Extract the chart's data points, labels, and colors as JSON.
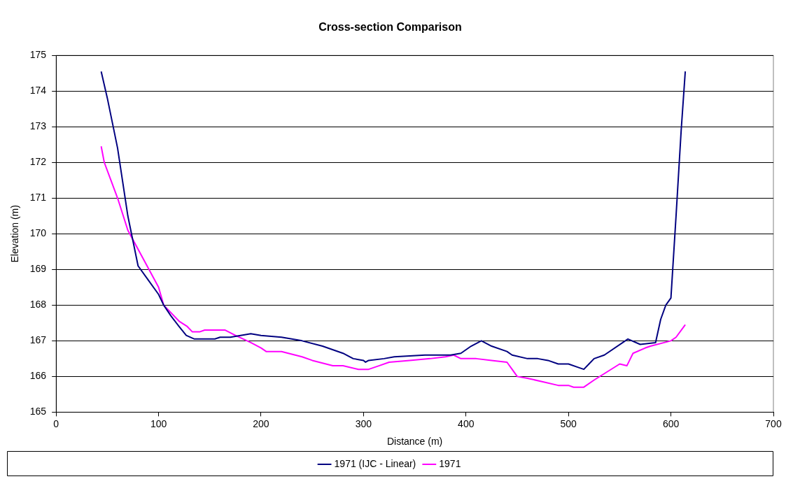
{
  "chart_data": {
    "type": "line",
    "title": "Cross-section Comparison",
    "xlabel": "Distance (m)",
    "ylabel": "Elevation (m)",
    "xlim": [
      0,
      700
    ],
    "xticks": [
      0,
      100,
      200,
      300,
      400,
      500,
      600,
      700
    ],
    "ylim": [
      165,
      175
    ],
    "yticks": [
      165,
      166,
      167,
      168,
      169,
      170,
      171,
      172,
      173,
      174,
      175
    ],
    "grid": "y",
    "legend": "bottom",
    "marker": "none",
    "line_style": "solid",
    "series": [
      {
        "name": "1971 (IJC - Linear)",
        "color": "#000080",
        "x": [
          44,
          50,
          60,
          70,
          75,
          80,
          90,
          100,
          105,
          112,
          120,
          127,
          135,
          155,
          160,
          170,
          180,
          190,
          200,
          220,
          240,
          260,
          280,
          290,
          300,
          302,
          305,
          320,
          330,
          360,
          385,
          395,
          405,
          415,
          425,
          440,
          445,
          460,
          470,
          480,
          490,
          500,
          510,
          515,
          520,
          525,
          535,
          558,
          570,
          585,
          590,
          595,
          600,
          605,
          610,
          614
        ],
        "values": [
          174.55,
          173.8,
          172.4,
          170.5,
          169.8,
          169.1,
          168.7,
          168.3,
          168.0,
          167.7,
          167.4,
          167.15,
          167.05,
          167.05,
          167.1,
          167.1,
          167.15,
          167.2,
          167.15,
          167.1,
          167.0,
          166.85,
          166.65,
          166.5,
          166.45,
          166.4,
          166.45,
          166.5,
          166.55,
          166.6,
          166.6,
          166.65,
          166.85,
          167.0,
          166.85,
          166.7,
          166.6,
          166.5,
          166.5,
          166.45,
          166.35,
          166.35,
          166.25,
          166.2,
          166.35,
          166.5,
          166.6,
          167.05,
          166.9,
          166.95,
          167.6,
          168.0,
          168.2,
          170.5,
          172.9,
          174.55
        ]
      },
      {
        "name": "1971",
        "color": "#ff00ff",
        "x": [
          44,
          47,
          60,
          70,
          85,
          100,
          105,
          120,
          128,
          133,
          140,
          145,
          165,
          175,
          190,
          200,
          205,
          220,
          240,
          250,
          270,
          280,
          295,
          305,
          315,
          325,
          345,
          365,
          380,
          388,
          395,
          410,
          425,
          440,
          445,
          450,
          460,
          475,
          490,
          500,
          505,
          515,
          525,
          550,
          557,
          563,
          575,
          580,
          600,
          605,
          614
        ],
        "values": [
          172.45,
          172.0,
          171.0,
          170.1,
          169.3,
          168.5,
          168.0,
          167.55,
          167.4,
          167.25,
          167.25,
          167.3,
          167.3,
          167.15,
          166.95,
          166.8,
          166.7,
          166.7,
          166.55,
          166.45,
          166.3,
          166.3,
          166.2,
          166.2,
          166.3,
          166.4,
          166.45,
          166.5,
          166.55,
          166.6,
          166.5,
          166.5,
          166.45,
          166.4,
          166.2,
          166.0,
          165.95,
          165.85,
          165.75,
          165.75,
          165.7,
          165.7,
          165.9,
          166.35,
          166.3,
          166.65,
          166.8,
          166.85,
          167.0,
          167.1,
          167.45
        ]
      }
    ]
  }
}
